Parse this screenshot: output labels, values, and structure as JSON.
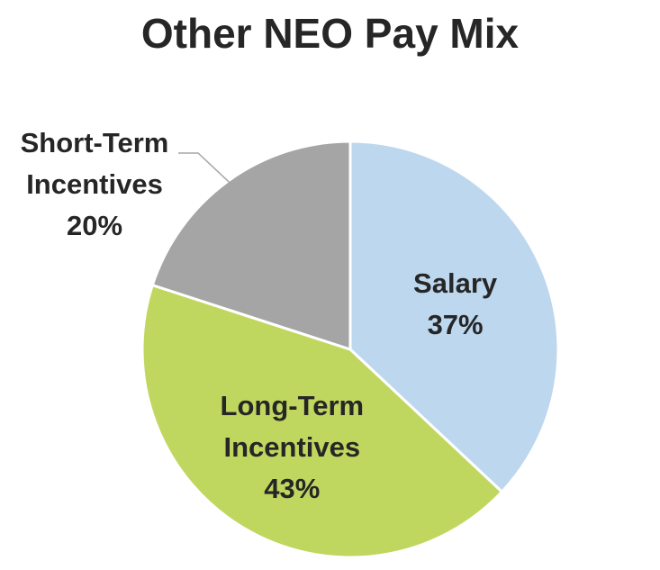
{
  "chart_data": {
    "type": "pie",
    "title": "Other NEO Pay Mix",
    "categories": [
      "Salary",
      "Long-Term Incentives",
      "Short-Term Incentives"
    ],
    "values": [
      37,
      43,
      20
    ],
    "value_labels": [
      "37%",
      "43%",
      "20%"
    ],
    "colors": [
      "#bdd7ee",
      "#bfd75f",
      "#a5a5a5"
    ]
  }
}
